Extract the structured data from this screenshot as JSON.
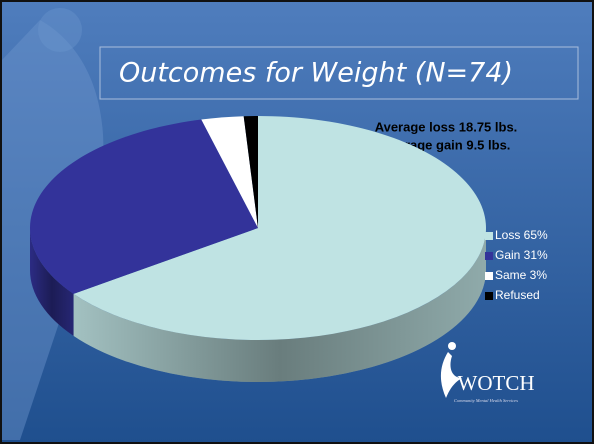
{
  "chart_data": {
    "type": "pie",
    "title": "Outcomes for Weight (N=74)",
    "annotations": [
      "Average loss 18.75 lbs.",
      "Average gain 9.5 lbs."
    ],
    "categories": [
      "Loss 65%",
      "Gain 31%",
      "Same 3%",
      "Refused"
    ],
    "values": [
      65,
      31,
      3,
      1
    ],
    "colors": [
      "#bfe3e3",
      "#33339a",
      "#ffffff",
      "#000000"
    ],
    "legend": "right"
  },
  "logo": {
    "name": "WOTCH",
    "tagline": "Community Mental Health Services"
  }
}
